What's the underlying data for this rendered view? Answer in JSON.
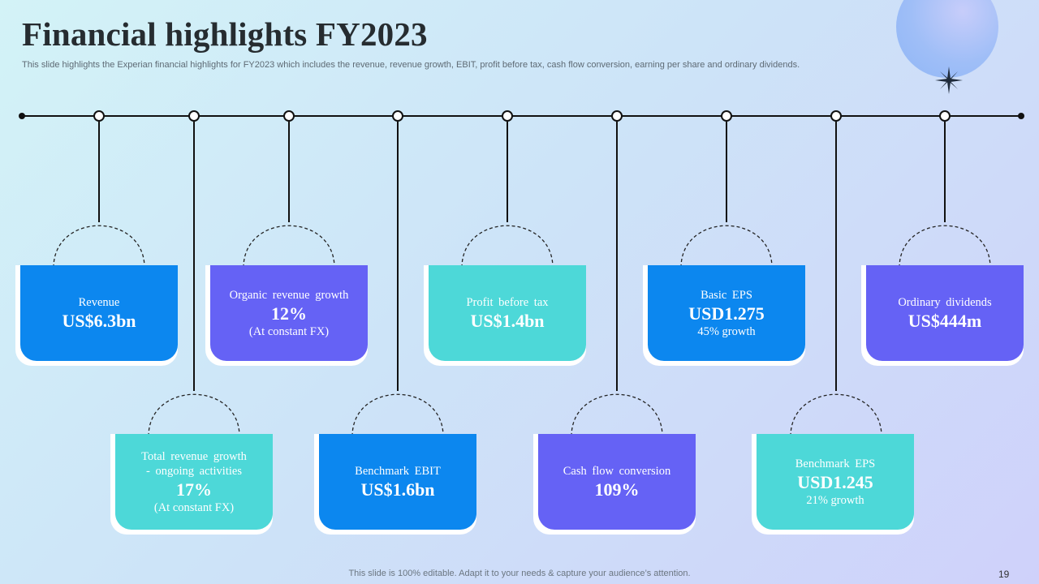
{
  "slide": {
    "title": "Financial highlights FY2023",
    "subtitle": "This slide highlights the Experian financial highlights for FY2023 which includes the revenue, revenue growth, EBIT,  profit before tax,  cash flow conversion, earning per share and ordinary dividends.",
    "footer": "This slide is 100% editable. Adapt it to your needs & capture your audience’s attention.",
    "page_number": "19"
  },
  "colors": {
    "blue": "#0c87ef",
    "purple": "#6562f5",
    "teal": "#4dd8d8",
    "line": "#111111"
  },
  "cards": {
    "revenue": {
      "label": "Revenue",
      "value": "US$6.3bn"
    },
    "organic_growth": {
      "label": "Organic revenue growth",
      "value": "12%",
      "sub": "(At constant FX)"
    },
    "profit_before_tax": {
      "label": "Profit before tax",
      "value": "US$1.4bn"
    },
    "basic_eps": {
      "label": "Basic EPS",
      "value": "USD1.275",
      "sub": "45% growth"
    },
    "ordinary_dividends": {
      "label": "Ordinary dividends",
      "value": "US$444m"
    },
    "total_revenue_growth": {
      "label": "Total revenue growth",
      "label2": "- ongoing activities",
      "value": "17%",
      "sub": "(At constant FX)"
    },
    "benchmark_ebit": {
      "label": "Benchmark EBIT",
      "value": "US$1.6bn"
    },
    "cash_flow_conversion": {
      "label": "Cash flow conversion",
      "value": "109%"
    },
    "benchmark_eps": {
      "label": "Benchmark EPS",
      "value": "USD1.245",
      "sub": "21% growth"
    }
  }
}
